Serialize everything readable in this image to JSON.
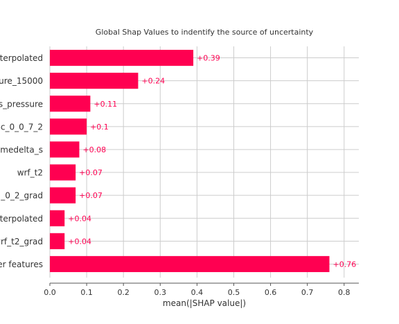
{
  "chart_data": {
    "type": "bar",
    "orientation": "horizontal",
    "title": "Global Shap Values to indentify the source of uncertainty",
    "xlabel": "mean(|SHAP value|)",
    "ylabel": "",
    "xlim": [
      0,
      0.84
    ],
    "xticks": [
      "0.0",
      "0.1",
      "0.2",
      "0.3",
      "0.4",
      "0.5",
      "0.6",
      "0.7",
      "0.8"
    ],
    "grid": true,
    "bar_color": "#ff0051",
    "categories": [
      "nterpolated",
      "ure_15000",
      "s_pressure",
      "c_0_0_7_2",
      "imedelta_s",
      "wrf_t2",
      "_0_2_grad",
      "nterpolated",
      "wrf_t2_grad",
      "er features"
    ],
    "values": [
      0.39,
      0.24,
      0.11,
      0.1,
      0.08,
      0.07,
      0.07,
      0.04,
      0.04,
      0.76
    ],
    "value_labels": [
      "+0.39",
      "+0.24",
      "+0.11",
      "+0.1",
      "+0.08",
      "+0.07",
      "+0.07",
      "+0.04",
      "+0.04",
      "+0.76"
    ]
  }
}
